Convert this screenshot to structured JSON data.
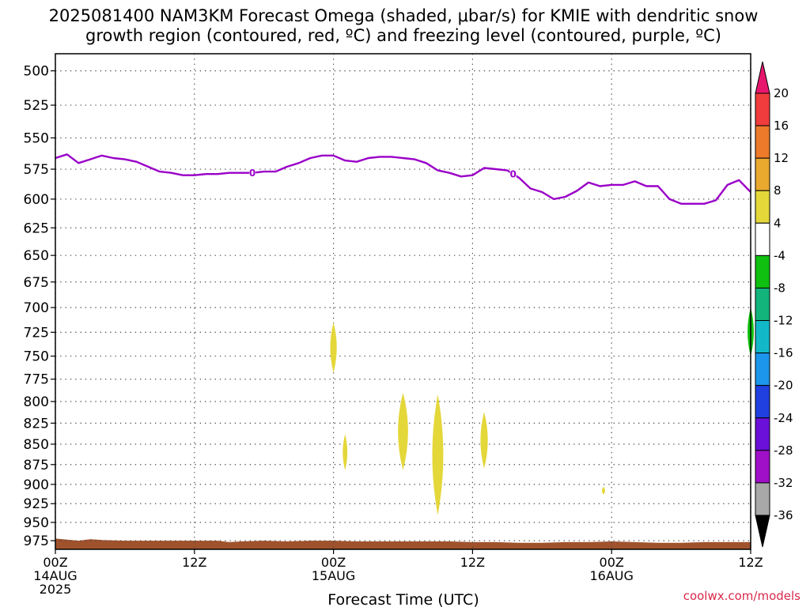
{
  "title_line1": "2025081400 NAM3KM Forecast Omega (shaded, μbar/s) for KMIE with dendritic snow",
  "title_line2": "growth region (contoured, red, ºC) and freezing level (contoured, purple, ºC)",
  "credit": "coolwx.com/models",
  "chart_data": {
    "type": "time-height cross section",
    "xlabel": "Forecast Time (UTC)",
    "x_ticks": [
      {
        "hour": 0,
        "lines": [
          "00Z",
          "14AUG",
          "2025"
        ]
      },
      {
        "hour": 12,
        "lines": [
          "12Z"
        ]
      },
      {
        "hour": 24,
        "lines": [
          "00Z",
          "15AUG"
        ]
      },
      {
        "hour": 36,
        "lines": [
          "12Z"
        ]
      },
      {
        "hour": 48,
        "lines": [
          "00Z",
          "16AUG"
        ]
      },
      {
        "hour": 60,
        "lines": [
          "12Z"
        ]
      }
    ],
    "xlim_hours": [
      0,
      60
    ],
    "ylabel": "",
    "y_ticks": [
      500,
      525,
      550,
      575,
      600,
      625,
      650,
      675,
      700,
      725,
      750,
      775,
      800,
      825,
      850,
      875,
      900,
      925,
      950,
      975
    ],
    "ylim_mb": [
      488,
      987
    ],
    "y_scale": "log-pressure",
    "grid": "dotted",
    "colorbar": {
      "unit": "μbar/s",
      "labels": [
        "20",
        "16",
        "12",
        "8",
        "4",
        "-4",
        "-8",
        "-12",
        "-16",
        "-20",
        "-24",
        "-28",
        "-32",
        "-36"
      ],
      "bins": [
        {
          "range": ">20",
          "color": "#e8176e"
        },
        {
          "range": "16-20",
          "color": "#f03c3c"
        },
        {
          "range": "12-16",
          "color": "#ec7a2a"
        },
        {
          "range": "8-12",
          "color": "#e9a92e"
        },
        {
          "range": "4-8",
          "color": "#e4d73a"
        },
        {
          "range": "-4-4",
          "color": "#ffffff"
        },
        {
          "range": "-8--4",
          "color": "#10c010"
        },
        {
          "range": "-12--8",
          "color": "#12b47c"
        },
        {
          "range": "-16--12",
          "color": "#12b8c8"
        },
        {
          "range": "-20--16",
          "color": "#1c96ec"
        },
        {
          "range": "-24--20",
          "color": "#2040e0"
        },
        {
          "range": "-28--24",
          "color": "#6a10d8"
        },
        {
          "range": "-32--28",
          "color": "#a010c8"
        },
        {
          "range": "-36--32",
          "color": "#a8a8a8"
        },
        {
          "range": "<-36",
          "color": "#000000"
        }
      ]
    },
    "freezing_level": {
      "color": "#9a00c8",
      "label": "0",
      "label_hours": [
        17,
        39.5
      ],
      "hours": [
        0,
        1,
        2,
        3,
        4,
        5,
        6,
        7,
        8,
        9,
        10,
        11,
        12,
        13,
        14,
        15,
        16,
        17,
        18,
        19,
        20,
        21,
        22,
        23,
        24,
        25,
        26,
        27,
        28,
        29,
        30,
        31,
        32,
        33,
        34,
        35,
        36,
        37,
        38,
        39,
        40,
        41,
        42,
        43,
        44,
        45,
        46,
        47,
        48,
        49,
        50,
        51,
        52,
        53,
        54,
        55,
        56,
        57,
        58,
        59,
        60
      ],
      "pressure_mb": [
        566,
        563,
        570,
        567,
        564,
        566,
        567,
        569,
        573,
        577,
        578,
        580,
        580,
        579,
        579,
        578,
        578,
        578,
        577,
        577,
        573,
        570,
        566,
        564,
        564,
        568,
        569,
        566,
        565,
        565,
        566,
        567,
        570,
        576,
        578,
        581,
        580,
        574,
        575,
        576,
        582,
        591,
        594,
        600,
        598,
        593,
        586,
        589,
        588,
        588,
        585,
        589,
        589,
        600,
        604,
        604,
        604,
        601,
        588,
        584,
        594
      ]
    },
    "omega_shaded_regions": [
      {
        "bin": "4-8",
        "hour": 24.0,
        "p_top": 715,
        "p_bottom": 768
      },
      {
        "bin": "4-8",
        "hour": 25.0,
        "p_top": 838,
        "p_bottom": 882
      },
      {
        "bin": "4-8",
        "hour": 30.0,
        "p_top": 790,
        "p_bottom": 882
      },
      {
        "bin": "4-8",
        "hour": 33.0,
        "p_top": 792,
        "p_bottom": 940
      },
      {
        "bin": "4-8",
        "hour": 37.0,
        "p_top": 812,
        "p_bottom": 880
      },
      {
        "bin": "4-8",
        "hour": 47.3,
        "p_top": 903,
        "p_bottom": 913
      },
      {
        "bin": "-8--4",
        "hour": 60.0,
        "p_top": 700,
        "p_bottom": 750
      }
    ],
    "terrain": {
      "color": "#a0522d",
      "hours": [
        0,
        2,
        3,
        4,
        6,
        8,
        10,
        12,
        14,
        15,
        16,
        18,
        20,
        22,
        24,
        26,
        28,
        30,
        32,
        34,
        36,
        38,
        40,
        42,
        44,
        46,
        48,
        50,
        52,
        54,
        56,
        58,
        60
      ],
      "surface_mb": [
        972,
        975,
        973,
        974,
        975,
        975,
        975,
        975,
        975,
        977,
        976,
        975,
        976,
        975,
        975,
        976,
        976,
        976,
        976,
        976,
        977,
        977,
        978,
        978,
        977,
        977,
        976,
        977,
        978,
        978,
        977,
        977,
        977
      ]
    }
  }
}
